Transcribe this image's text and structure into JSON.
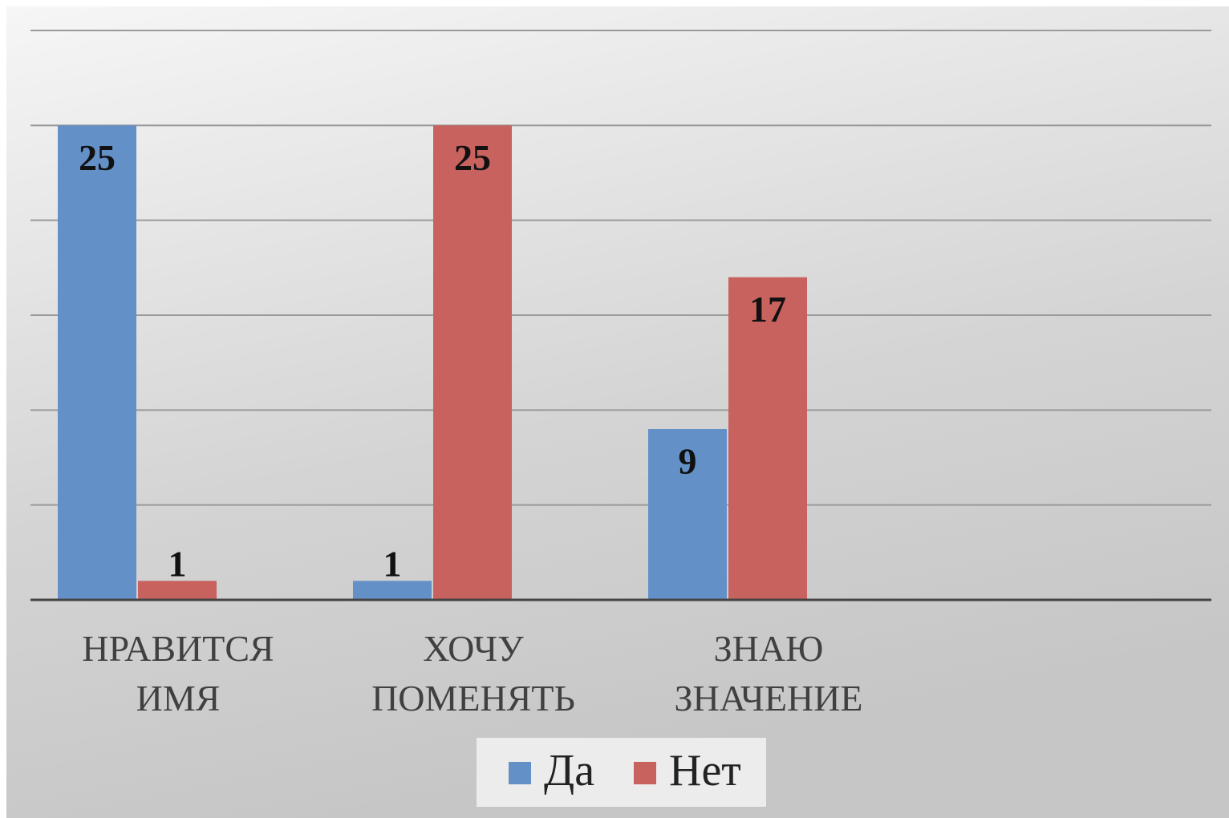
{
  "chart_data": {
    "type": "bar",
    "categories": [
      "НРАВИТСЯ ИМЯ",
      "ХОЧУ ПОМЕНЯТЬ",
      "ЗНАЮ ЗНАЧЕНИЕ",
      null
    ],
    "series": [
      {
        "name": "Да",
        "color": "#6490c8",
        "values": [
          25,
          1,
          9,
          null
        ]
      },
      {
        "name": "Нет",
        "color": "#c8625f",
        "values": [
          1,
          25,
          17,
          null
        ]
      }
    ],
    "ylim": [
      0,
      30
    ],
    "yticks": [
      0,
      5,
      10,
      15,
      20,
      25,
      30
    ],
    "grid": true,
    "legend": "bottom"
  }
}
